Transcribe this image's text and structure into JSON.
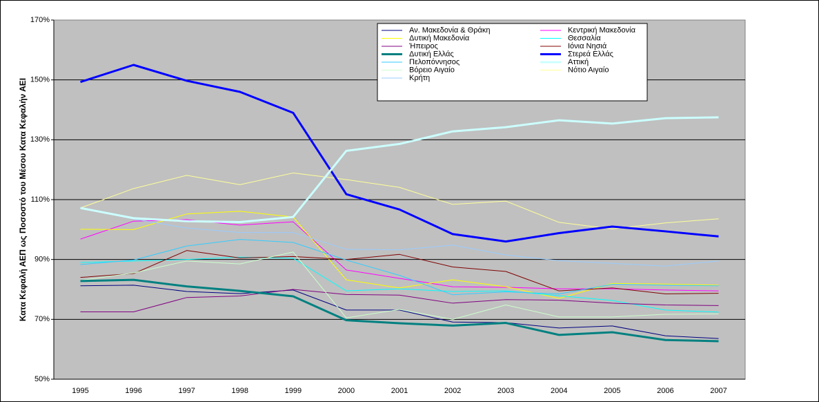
{
  "chart_data": {
    "type": "line",
    "y_axis_label": "Κατα Κεφαλή ΑΕΠ ως Ποσοστό του Μέσου Κατα Κεφαλήν ΑΕΙ",
    "categories": [
      "1995",
      "1996",
      "1997",
      "1998",
      "1999",
      "2000",
      "2001",
      "2002",
      "2003",
      "2004",
      "2005",
      "2006",
      "2007"
    ],
    "ylim": [
      50,
      170
    ],
    "yticks": [
      {
        "value": 50,
        "label": "50%"
      },
      {
        "value": 70,
        "label": "70%"
      },
      {
        "value": 90,
        "label": "90%"
      },
      {
        "value": 110,
        "label": "110%"
      },
      {
        "value": 130,
        "label": "130%"
      },
      {
        "value": 150,
        "label": "150%"
      },
      {
        "value": 170,
        "label": "170%"
      }
    ],
    "grid": true,
    "legend": "top-right",
    "series": [
      {
        "name": "Αν. Μακεδονία & Θράκη",
        "color": "#000080",
        "width": 1,
        "values": [
          81.2,
          81.4,
          79.3,
          78.6,
          79.8,
          73.1,
          73.1,
          69.1,
          68.9,
          67.1,
          67.8,
          64.5,
          63.6
        ]
      },
      {
        "name": "Κεντρική Μακεδονία",
        "color": "#ff00ff",
        "width": 1,
        "values": [
          96.8,
          102.8,
          103.3,
          101.5,
          102.6,
          86.5,
          83.7,
          80.9,
          80.7,
          80.2,
          80.2,
          79.8,
          79.5
        ]
      },
      {
        "name": "Δυτική Μακεδονία",
        "color": "#ffff00",
        "width": 1,
        "values": [
          100.1,
          100,
          105.2,
          106.1,
          104.2,
          83.2,
          80.5,
          83.2,
          80.9,
          77,
          82,
          81.8,
          81.4
        ]
      },
      {
        "name": "Θεσσαλία",
        "color": "#00ffff",
        "width": 1,
        "values": [
          89,
          89.5,
          90,
          90.8,
          90.4,
          79.5,
          80.2,
          79.3,
          79.5,
          77.9,
          76.3,
          73.1,
          72.4
        ]
      },
      {
        "name": "Ήπειρος",
        "color": "#800080",
        "width": 1,
        "values": [
          72.5,
          72.5,
          77.3,
          77.8,
          80,
          78.3,
          78.1,
          75.4,
          76.6,
          76.4,
          75.4,
          74.8,
          74.6
        ]
      },
      {
        "name": "Ιόνια Νησιά",
        "color": "#800000",
        "width": 1,
        "values": [
          84,
          85.3,
          93,
          90.5,
          91,
          90,
          91.7,
          87.5,
          86,
          79.5,
          80.5,
          78.5,
          78.7
        ]
      },
      {
        "name": "Δυτική Ελλάς",
        "color": "#008080",
        "width": 3,
        "values": [
          82.8,
          83.2,
          81,
          79.5,
          77.7,
          69.7,
          68.7,
          67.9,
          68.8,
          64.8,
          65.7,
          63.1,
          62.7
        ]
      },
      {
        "name": "Στερεά Ελλάς",
        "color": "#0000ff",
        "width": 3,
        "values": [
          149.3,
          155,
          149.7,
          146,
          139,
          111.8,
          106.7,
          98.5,
          96,
          98.8,
          101,
          99.4,
          97.7
        ]
      },
      {
        "name": "Πελοπόννησος",
        "color": "#33ccff",
        "width": 1,
        "values": [
          88.3,
          89.8,
          94.5,
          96.7,
          95.7,
          89.8,
          84.7,
          78.2,
          79.2,
          78.5,
          81.7,
          81.4,
          81.2
        ]
      },
      {
        "name": "Αττική",
        "color": "#ccffff",
        "width": 3,
        "values": [
          107.2,
          103.8,
          102.8,
          102.5,
          104.2,
          126.3,
          128.6,
          132.8,
          134.2,
          136.5,
          135.4,
          137.2,
          137.5
        ]
      },
      {
        "name": "Βόρειο Αιγαίο",
        "color": "#ccffcc",
        "width": 1,
        "values": [
          83,
          85.5,
          89.5,
          88.5,
          92.5,
          70.5,
          73.3,
          70,
          74.8,
          70.8,
          70.8,
          71.7,
          71.8
        ]
      },
      {
        "name": "Νότιο Αιγαίο",
        "color": "#ffff99",
        "width": 1,
        "values": [
          107.2,
          113.7,
          118.1,
          115,
          118.9,
          116.7,
          114.1,
          108.4,
          109.5,
          102.4,
          100.2,
          102.2,
          103.6
        ]
      },
      {
        "name": "Κρήτη",
        "color": "#99ccff",
        "width": 1,
        "values": [
          107.2,
          103.5,
          100.5,
          99,
          99,
          93.4,
          93.2,
          94.8,
          91.5,
          89.6,
          88.7,
          87.8,
          89.5
        ]
      }
    ]
  }
}
